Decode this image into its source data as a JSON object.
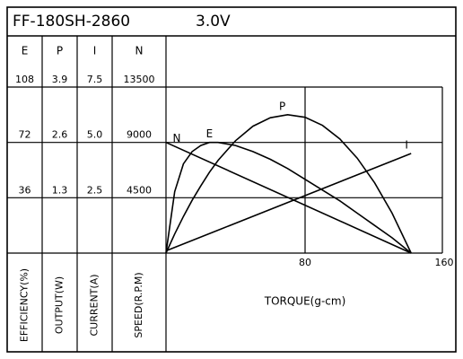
{
  "chart_data": {
    "type": "line",
    "title": "FF-180SH-2860",
    "subtitle": "3.0V",
    "xlabel": "TORQUE(g-cm)",
    "xlim": [
      0,
      160
    ],
    "xticks": [
      80,
      160
    ],
    "axes": [
      {
        "key": "E",
        "label": "EFFICIENCY(%)",
        "ylim": [
          0,
          108
        ],
        "yticks": [
          36,
          72,
          108
        ]
      },
      {
        "key": "P",
        "label": "OUTPUT(W)",
        "ylim": [
          0,
          3.9
        ],
        "yticks": [
          1.3,
          2.6,
          3.9
        ]
      },
      {
        "key": "I",
        "label": "CURRENT(A)",
        "ylim": [
          0,
          7.5
        ],
        "yticks": [
          2.5,
          {
            "value": 5,
            "label": "5.0"
          },
          7.5
        ]
      },
      {
        "key": "N",
        "label": "SPEED(R.P.M)",
        "ylim": [
          0,
          13500
        ],
        "yticks": [
          4500,
          9000,
          13500
        ]
      }
    ],
    "series": [
      {
        "name": "N",
        "axis": "N",
        "color": "#000000",
        "x": [
          0,
          141
        ],
        "values": [
          9000,
          0
        ]
      },
      {
        "name": "E",
        "axis": "E",
        "color": "#000000",
        "x": [
          0,
          5,
          10,
          15,
          20,
          25,
          30,
          40,
          50,
          60,
          70,
          80,
          90,
          100,
          110,
          120,
          130,
          141
        ],
        "values": [
          0,
          40,
          58,
          66,
          70,
          72,
          72,
          70,
          66,
          61,
          55,
          48,
          41,
          34,
          26,
          18,
          10,
          0
        ]
      },
      {
        "name": "P",
        "axis": "P",
        "color": "#000000",
        "x": [
          0,
          5,
          10,
          15,
          20,
          25,
          30,
          40,
          50,
          60,
          70,
          80,
          90,
          100,
          110,
          120,
          130,
          141
        ],
        "values": [
          0,
          0.45,
          0.86,
          1.24,
          1.58,
          1.9,
          2.18,
          2.64,
          2.98,
          3.18,
          3.25,
          3.19,
          3.0,
          2.68,
          2.23,
          1.65,
          0.94,
          0
        ]
      },
      {
        "name": "I",
        "axis": "I",
        "color": "#000000",
        "x": [
          0,
          141
        ],
        "values": [
          0.1,
          4.5
        ]
      }
    ]
  }
}
